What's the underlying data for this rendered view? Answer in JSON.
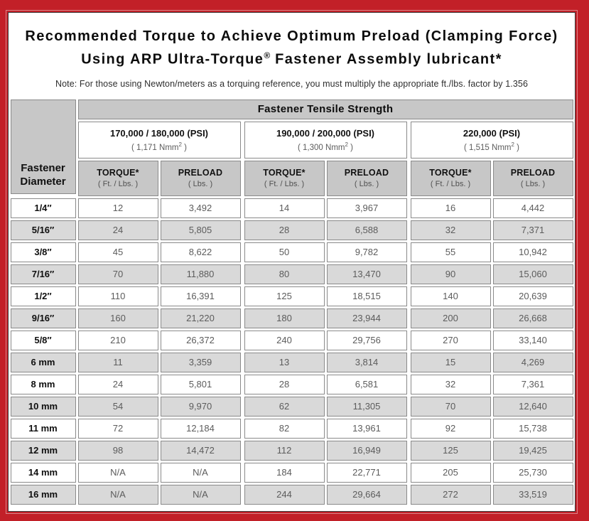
{
  "title": {
    "line1": "Recommended Torque to Achieve Optimum Preload (Clamping Force)",
    "line2_prefix": "Using ARP Ultra-Torque",
    "line2_reg": "®",
    "line2_suffix": " Fastener Assembly lubricant*"
  },
  "note": "Note: For those using Newton/meters as a torquing reference, you must multiply the appropriate ft./lbs. factor by 1.356",
  "colors": {
    "frame_red": "#c22028",
    "header_grey": "#c7c7c7",
    "alt_row_grey": "#d9d9d9",
    "cell_border_grey": "#8a8a8a"
  },
  "table": {
    "tensile_header": "Fastener Tensile Strength",
    "diameter_header": "Fastener Diameter",
    "torque_label": "TORQUE*",
    "torque_sub": "( Ft. / Lbs. )",
    "preload_label": "PRELOAD",
    "preload_sub": "( Lbs. )",
    "groups": [
      {
        "psi": "170,000 / 180,000 (PSI)",
        "nmm_prefix": "( 1,171 Nmm",
        "nmm_sup": "2",
        "nmm_suffix": " )"
      },
      {
        "psi": "190,000 / 200,000 (PSI)",
        "nmm_prefix": "( 1,300 Nmm",
        "nmm_sup": "2",
        "nmm_suffix": " )"
      },
      {
        "psi": "220,000 (PSI)",
        "nmm_prefix": "( 1,515 Nmm",
        "nmm_sup": "2",
        "nmm_suffix": " )"
      }
    ],
    "rows": [
      {
        "diameter": "1/4″",
        "values": [
          "12",
          "3,492",
          "14",
          "3,967",
          "16",
          "4,442"
        ]
      },
      {
        "diameter": "5/16″",
        "values": [
          "24",
          "5,805",
          "28",
          "6,588",
          "32",
          "7,371"
        ]
      },
      {
        "diameter": "3/8″",
        "values": [
          "45",
          "8,622",
          "50",
          "9,782",
          "55",
          "10,942"
        ]
      },
      {
        "diameter": "7/16″",
        "values": [
          "70",
          "11,880",
          "80",
          "13,470",
          "90",
          "15,060"
        ]
      },
      {
        "diameter": "1/2″",
        "values": [
          "110",
          "16,391",
          "125",
          "18,515",
          "140",
          "20,639"
        ]
      },
      {
        "diameter": "9/16″",
        "values": [
          "160",
          "21,220",
          "180",
          "23,944",
          "200",
          "26,668"
        ]
      },
      {
        "diameter": "5/8″",
        "values": [
          "210",
          "26,372",
          "240",
          "29,756",
          "270",
          "33,140"
        ]
      },
      {
        "diameter": "6 mm",
        "values": [
          "11",
          "3,359",
          "13",
          "3,814",
          "15",
          "4,269"
        ]
      },
      {
        "diameter": "8 mm",
        "values": [
          "24",
          "5,801",
          "28",
          "6,581",
          "32",
          "7,361"
        ]
      },
      {
        "diameter": "10 mm",
        "values": [
          "54",
          "9,970",
          "62",
          "11,305",
          "70",
          "12,640"
        ]
      },
      {
        "diameter": "11 mm",
        "values": [
          "72",
          "12,184",
          "82",
          "13,961",
          "92",
          "15,738"
        ]
      },
      {
        "diameter": "12 mm",
        "values": [
          "98",
          "14,472",
          "112",
          "16,949",
          "125",
          "19,425"
        ]
      },
      {
        "diameter": "14 mm",
        "values": [
          "N/A",
          "N/A",
          "184",
          "22,771",
          "205",
          "25,730"
        ]
      },
      {
        "diameter": "16 mm",
        "values": [
          "N/A",
          "N/A",
          "244",
          "29,664",
          "272",
          "33,519"
        ]
      }
    ]
  }
}
